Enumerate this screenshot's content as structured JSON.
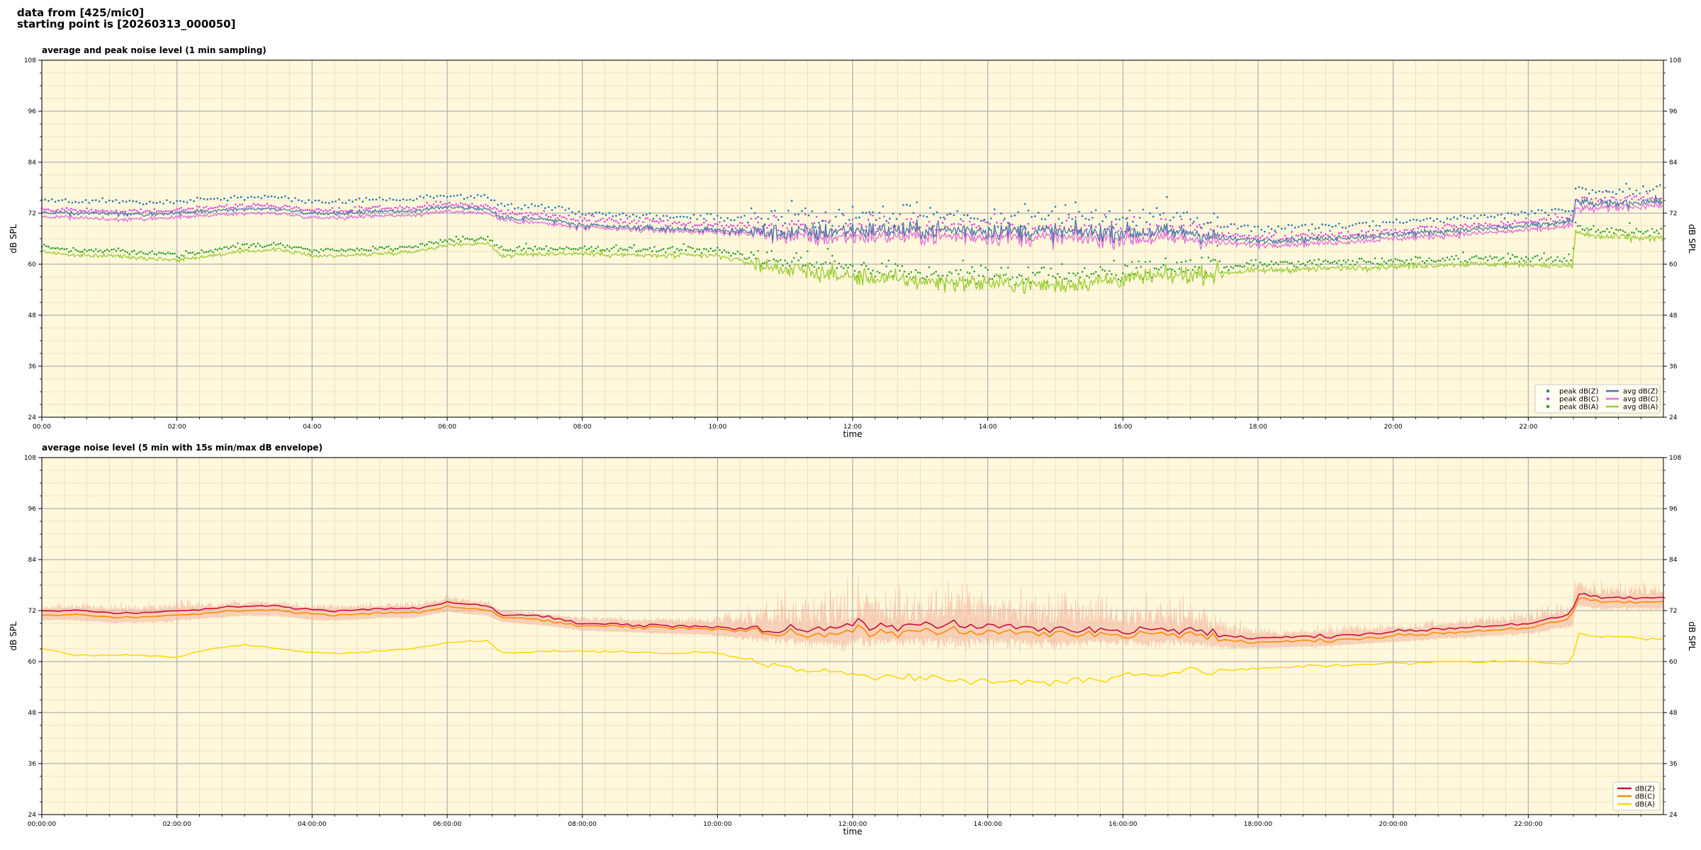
{
  "header": {
    "line1": "data from [425/mic0]",
    "line2": "starting point is [20260313_000050]"
  },
  "colors": {
    "panel_bg": "#fff8dc",
    "grid_major": "#b0b0b0",
    "grid_minor": "#e6dcb4"
  },
  "chart_data": [
    {
      "type": "line",
      "title": "average and peak noise level (1 min sampling)",
      "xlabel": "time",
      "ylabel": "dB SPL",
      "ylim": [
        24,
        108
      ],
      "xlim_hours": [
        0,
        24
      ],
      "y_ticks": [
        24,
        36,
        48,
        60,
        72,
        84,
        96,
        108
      ],
      "x_ticks": [
        "00:00",
        "02:00",
        "04:00",
        "06:00",
        "08:00",
        "10:00",
        "12:00",
        "14:00",
        "16:00",
        "18:00",
        "20:00",
        "22:00"
      ],
      "grid": true,
      "legend_position": "lower-right",
      "legend": [
        "peak dB(Z)",
        "peak dB(C)",
        "peak dB(A)",
        "avg dB(Z)",
        "avg dB(C)",
        "avg dB(A)"
      ],
      "series_colors": {
        "peak_z": "#1f77b4",
        "peak_c": "#e040e0",
        "peak_a": "#2ca02c",
        "avg_z": "#4878a8",
        "avg_c": "#e070d8",
        "avg_a": "#9acd32"
      },
      "trend_hours": [
        0,
        0.5,
        1,
        1.5,
        2,
        2.5,
        3,
        3.5,
        4,
        4.5,
        5,
        5.5,
        6,
        6.6,
        6.8,
        7.5,
        8,
        9,
        10,
        10.7,
        11.5,
        12,
        13,
        14,
        15,
        16,
        17,
        17.5,
        18,
        19,
        20,
        21,
        22,
        22.65,
        22.7,
        23,
        24
      ],
      "avg_z_trend": [
        72,
        72,
        72,
        71.5,
        72,
        72.5,
        73,
        73,
        72,
        72,
        72.5,
        72.5,
        73.5,
        73,
        71,
        70.5,
        69,
        68.5,
        68,
        67.5,
        67.5,
        68,
        68,
        68,
        67.5,
        67.5,
        67.5,
        66,
        65.5,
        66,
        67,
        68,
        69,
        70,
        75,
        74,
        75
      ],
      "avg_c_trend": [
        71,
        71,
        70.5,
        70.5,
        71,
        71.5,
        72,
        72,
        71,
        71,
        71.5,
        71.5,
        72.5,
        72,
        70.5,
        69.5,
        68.5,
        68,
        67.5,
        67,
        66,
        66.5,
        66.5,
        66.5,
        66,
        66,
        66,
        65,
        64.5,
        65,
        66,
        67,
        68,
        69,
        73,
        73,
        74
      ],
      "avg_a_trend": [
        63,
        62,
        62,
        61.5,
        61,
        62,
        63,
        63.5,
        62,
        62,
        62.5,
        63,
        64.5,
        65,
        62,
        62.5,
        62.5,
        62,
        62,
        59.5,
        58,
        57,
        56,
        55.5,
        55,
        56.5,
        57.5,
        58,
        58.5,
        59,
        59.5,
        60,
        60,
        59.5,
        67.5,
        66.5,
        66
      ],
      "peak_z_offset": 2.5,
      "peak_c_offset": 1.5,
      "peak_a_offset": 1.0
    },
    {
      "type": "line",
      "title": "average noise level (5 min with 15s min/max dB envelope)",
      "xlabel": "time",
      "ylabel": "dB SPL",
      "ylim": [
        24,
        108
      ],
      "xlim_hours": [
        0,
        24
      ],
      "y_ticks": [
        24,
        36,
        48,
        60,
        72,
        84,
        96,
        108
      ],
      "x_ticks": [
        "00:00:00",
        "02:00:00",
        "04:00:00",
        "06:00:00",
        "08:00:00",
        "10:00:00",
        "12:00:00",
        "14:00:00",
        "16:00:00",
        "18:00:00",
        "20:00:00",
        "22:00:00"
      ],
      "grid": true,
      "legend_position": "lower-right",
      "legend": [
        "dB(Z)",
        "dB(C)",
        "dB(A)"
      ],
      "series_colors": {
        "z": "#c8103c",
        "c": "#ff8c00",
        "a": "#ffd700",
        "envelope": "#f4b8a0"
      },
      "trend_hours": [
        0,
        0.5,
        1,
        1.5,
        2,
        2.5,
        3,
        3.5,
        4,
        4.5,
        5,
        5.5,
        6,
        6.6,
        6.8,
        7.5,
        8,
        9,
        10,
        10.7,
        11.5,
        12,
        13,
        14,
        15,
        16,
        17,
        17.5,
        18,
        19,
        20,
        21,
        22,
        22.65,
        22.7,
        23,
        24
      ],
      "z_trend": [
        72,
        72,
        71.5,
        71.5,
        72,
        72.5,
        73,
        73,
        72,
        72,
        72.5,
        72.5,
        74,
        73,
        71,
        70.5,
        69,
        68.5,
        68,
        67.5,
        68,
        68.5,
        68.5,
        68.5,
        67.5,
        67.5,
        67.5,
        66,
        65.5,
        66,
        67,
        68,
        69,
        71,
        76,
        75,
        75
      ],
      "c_trend": [
        71,
        71,
        70.5,
        70.5,
        71,
        71.5,
        72,
        72,
        71,
        71,
        71.5,
        71.5,
        73,
        72,
        70.5,
        69.5,
        68.5,
        68,
        67.5,
        67,
        66.5,
        67,
        67,
        67,
        66.5,
        66.5,
        66.5,
        65,
        64.5,
        65,
        66,
        67,
        68,
        70,
        75,
        74,
        74
      ],
      "a_trend": [
        63,
        61.5,
        61.5,
        61.5,
        61,
        63,
        64,
        63,
        62,
        62,
        62.5,
        63,
        64.5,
        65,
        62,
        62.5,
        62.5,
        62,
        62,
        59.5,
        58,
        57,
        56,
        55.5,
        55,
        56.5,
        57.5,
        58,
        58.5,
        59,
        59.5,
        60,
        60,
        59.5,
        66.5,
        66,
        65.5
      ],
      "envelope_spread_trend": [
        1.5,
        2,
        3,
        3,
        3,
        2,
        2,
        2,
        2,
        2,
        2,
        2,
        2,
        2,
        1,
        1,
        1.5,
        2,
        3,
        8,
        12,
        14,
        14,
        14,
        12,
        10,
        10,
        6,
        3,
        3,
        3,
        3,
        4,
        5,
        5,
        5,
        5
      ]
    }
  ]
}
